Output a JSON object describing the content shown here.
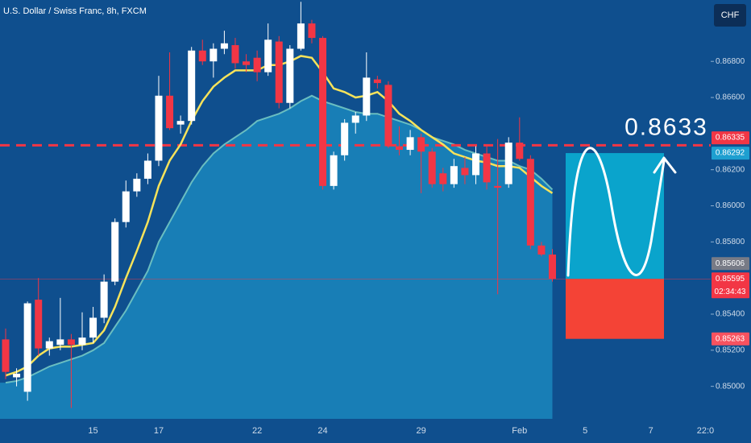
{
  "chart_data": {
    "type": "candlestick",
    "title": "U.S. Dollar / Swiss Franc, 8h, FXCM",
    "currency": "CHF",
    "categories": [
      null,
      null,
      null,
      null,
      null,
      null,
      null,
      null,
      "15",
      null,
      null,
      null,
      null,
      null,
      "17",
      null,
      null,
      null,
      null,
      null,
      null,
      null,
      null,
      "22",
      null,
      null,
      null,
      null,
      null,
      "24",
      null,
      null,
      null,
      null,
      null,
      null,
      null,
      null,
      "29",
      null,
      null,
      null,
      null,
      null,
      null,
      null,
      null,
      "Feb",
      null,
      null,
      null,
      null,
      null,
      "5",
      null,
      null,
      null,
      null,
      null,
      "7",
      null,
      null,
      null,
      null,
      "22:0"
    ],
    "open": [
      0.8526,
      0.8505,
      0.8497,
      0.8548,
      0.8521,
      0.8523,
      0.8526,
      0.8523,
      0.8527,
      0.8538,
      0.8558,
      0.8591,
      0.8608,
      0.8615,
      0.8625,
      0.8661,
      0.8645,
      0.8647,
      0.8686,
      0.868,
      0.8687,
      0.8689,
      0.868,
      0.8682,
      0.8674,
      0.8691,
      0.8657,
      0.8687,
      0.8701,
      0.8693,
      0.8611,
      0.8628,
      0.8646,
      0.865,
      0.867,
      0.8667,
      0.8633,
      0.8631,
      0.8638,
      0.863,
      0.8618,
      0.8612,
      0.8621,
      0.8617,
      0.8629,
      0.8611,
      0.8612,
      0.8635,
      0.8626,
      0.8578,
      0.8573,
      null,
      null,
      null,
      null,
      null,
      null,
      null,
      null,
      null,
      null,
      null,
      null,
      null,
      null
    ],
    "high": [
      0.8532,
      0.851,
      0.8547,
      0.856,
      0.8527,
      0.8549,
      0.8529,
      0.8541,
      0.8544,
      0.8562,
      0.8593,
      0.8614,
      0.8618,
      0.8629,
      0.8672,
      0.8685,
      0.865,
      0.8688,
      0.8692,
      0.869,
      0.8697,
      0.8693,
      0.8684,
      0.8686,
      0.8701,
      0.8694,
      0.8689,
      0.8713,
      0.8703,
      0.8694,
      0.863,
      0.8648,
      0.8652,
      0.8685,
      0.8672,
      0.8669,
      0.8644,
      0.8642,
      0.864,
      0.8632,
      0.8621,
      0.8626,
      0.8627,
      0.8633,
      0.8634,
      0.8637,
      0.8638,
      0.8649,
      0.8628,
      0.858,
      0.8576,
      null,
      null,
      null,
      null,
      null,
      null,
      null,
      null,
      null,
      null,
      null,
      null,
      null,
      null
    ],
    "low": [
      0.8504,
      0.85,
      0.8492,
      0.8517,
      0.8517,
      0.852,
      0.8488,
      0.852,
      0.8524,
      0.8535,
      0.8556,
      0.8588,
      0.8605,
      0.8612,
      0.8622,
      0.8642,
      0.864,
      0.8645,
      0.8678,
      0.8671,
      0.8684,
      0.8676,
      0.8674,
      0.8669,
      0.8672,
      0.8654,
      0.8654,
      0.8686,
      0.869,
      0.8609,
      0.8609,
      0.8625,
      0.864,
      0.8647,
      0.8665,
      0.8632,
      0.8628,
      0.8628,
      0.8607,
      0.861,
      0.8608,
      0.861,
      0.8612,
      0.8612,
      0.8609,
      0.8551,
      0.861,
      0.8625,
      0.8576,
      0.8572,
      0.8558,
      null,
      null,
      null,
      null,
      null,
      null,
      null,
      null,
      null,
      null,
      null,
      null,
      null,
      null
    ],
    "close": [
      0.8508,
      0.8507,
      0.8546,
      0.8521,
      0.8525,
      0.8526,
      0.8523,
      0.8527,
      0.8538,
      0.8558,
      0.8591,
      0.8608,
      0.8615,
      0.8625,
      0.8661,
      0.8643,
      0.8647,
      0.8686,
      0.868,
      0.8687,
      0.869,
      0.8679,
      0.8678,
      0.8674,
      0.8692,
      0.8657,
      0.8687,
      0.8701,
      0.8693,
      0.8611,
      0.8628,
      0.8646,
      0.865,
      0.8671,
      0.8668,
      0.8633,
      0.8631,
      0.8638,
      0.863,
      0.8612,
      0.8612,
      0.8622,
      0.8617,
      0.8629,
      0.8613,
      0.861,
      0.8635,
      0.8626,
      0.8578,
      0.8573,
      0.85595,
      null,
      null,
      null,
      null,
      null,
      null,
      null,
      null,
      null,
      null,
      null,
      null,
      null,
      null
    ],
    "up_color": "#ffffff",
    "down_color": "#f23645",
    "area": {
      "color": "#1a86bd",
      "line_color": "#7fd3c8",
      "values": [
        0.8502,
        0.8503,
        0.8505,
        0.8508,
        0.8511,
        0.8513,
        0.8515,
        0.8517,
        0.852,
        0.8524,
        0.8533,
        0.8542,
        0.8553,
        0.8564,
        0.858,
        0.8591,
        0.8602,
        0.8613,
        0.8622,
        0.8629,
        0.8634,
        0.8638,
        0.8642,
        0.8647,
        0.8649,
        0.8651,
        0.8654,
        0.8658,
        0.8661,
        0.8658,
        0.8656,
        0.8654,
        0.8652,
        0.8651,
        0.8651,
        0.8649,
        0.8647,
        0.8645,
        0.8642,
        0.8638,
        0.8636,
        0.8634,
        0.8631,
        0.8629,
        0.8627,
        0.8625,
        0.8625,
        0.8622,
        0.862,
        0.8615,
        0.8609,
        null,
        null,
        null,
        null,
        null,
        null,
        null,
        null,
        null,
        null,
        null,
        null,
        null,
        null
      ]
    },
    "line": {
      "color": "#f7e35a",
      "values": [
        0.8506,
        0.8508,
        0.8511,
        0.8517,
        0.8521,
        0.8522,
        0.8522,
        0.8523,
        0.8524,
        0.8531,
        0.8544,
        0.856,
        0.8575,
        0.8591,
        0.8611,
        0.8625,
        0.8634,
        0.8647,
        0.8658,
        0.8666,
        0.8671,
        0.8675,
        0.8675,
        0.8675,
        0.8678,
        0.8678,
        0.868,
        0.8683,
        0.8682,
        0.8674,
        0.8665,
        0.8663,
        0.866,
        0.8661,
        0.8663,
        0.8658,
        0.8651,
        0.8647,
        0.8642,
        0.8638,
        0.8634,
        0.8629,
        0.8627,
        0.8625,
        0.8624,
        0.8622,
        0.8622,
        0.8621,
        0.8616,
        0.8611,
        0.8607,
        null,
        null,
        null,
        null,
        null,
        null,
        null,
        null,
        null,
        null,
        null,
        null,
        null,
        null
      ]
    },
    "ylim": [
      0.8482,
      0.8714
    ],
    "yticks": [
      {
        "value": 0.85,
        "label": "0.85000"
      },
      {
        "value": 0.852,
        "label": "0.85200"
      },
      {
        "value": 0.854,
        "label": "0.85400"
      },
      {
        "value": 0.858,
        "label": "0.85800"
      },
      {
        "value": 0.86,
        "label": "0.86000"
      },
      {
        "value": 0.862,
        "label": "0.86200"
      },
      {
        "value": 0.866,
        "label": "0.86600"
      },
      {
        "value": 0.868,
        "label": "0.86800"
      }
    ],
    "grid": false,
    "price_labels": [
      {
        "value": 0.86335,
        "color": "#f23645",
        "line": "dashed"
      },
      {
        "value": 0.86292,
        "color": "#1e9fd0"
      },
      {
        "value": 0.85606,
        "color": "#787b86"
      },
      {
        "value": 0.85595,
        "color": "#f23645",
        "line": "thin"
      },
      {
        "value": 0.85263,
        "color": "#f7525f"
      }
    ],
    "countdown": "02:34:43",
    "target_label": 0.8633
  }
}
